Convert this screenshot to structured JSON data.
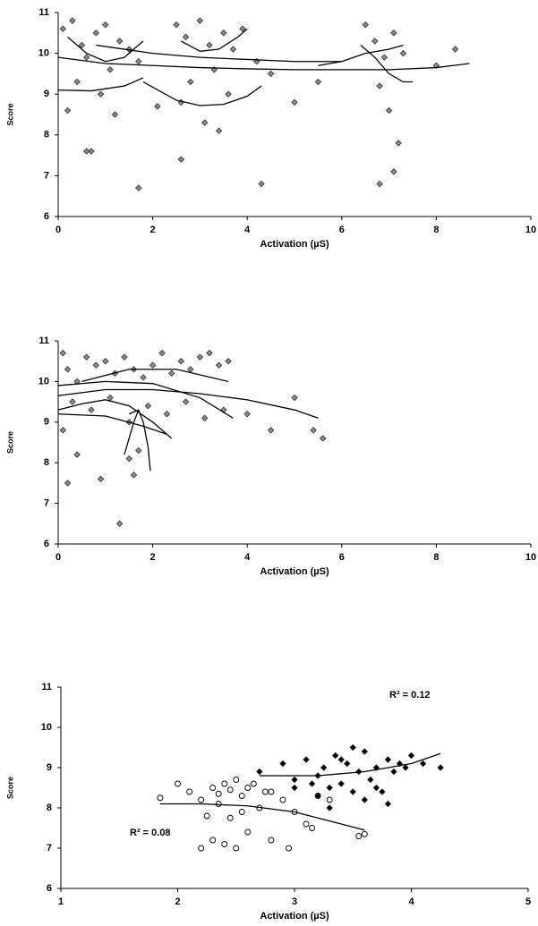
{
  "chart_data": [
    {
      "type": "scatter",
      "xlabel": "Activation (µS)",
      "ylabel": "Score",
      "xlim": [
        0,
        10
      ],
      "ylim": [
        6,
        11
      ],
      "xticks": [
        0,
        2,
        4,
        6,
        8,
        10
      ],
      "yticks": [
        6,
        7,
        8,
        9,
        10,
        11
      ],
      "series": [
        {
          "mode": "markers",
          "marker": "diamond",
          "color": "#8a8a8a",
          "x": [
            0.1,
            0.3,
            0.5,
            0.6,
            0.8,
            1.0,
            1.1,
            1.3,
            1.5,
            1.7,
            0.4,
            0.9,
            1.2,
            0.2,
            0.7,
            2.5,
            2.7,
            3.0,
            3.2,
            3.5,
            3.7,
            3.9,
            2.8,
            3.3,
            3.6,
            2.6,
            3.1,
            4.2,
            4.5,
            5.0,
            5.5,
            6.5,
            6.7,
            6.9,
            7.1,
            7.3,
            6.8,
            7.0,
            7.2,
            8.0,
            8.4,
            0.6,
            1.7,
            2.6,
            4.3,
            6.8,
            7.1,
            2.1,
            3.4
          ],
          "values": [
            10.6,
            10.8,
            10.2,
            9.9,
            10.5,
            10.7,
            9.6,
            10.3,
            10.1,
            9.8,
            9.3,
            9.0,
            8.5,
            8.6,
            7.6,
            10.7,
            10.4,
            10.8,
            10.2,
            10.5,
            10.1,
            10.6,
            9.3,
            9.6,
            9.0,
            8.8,
            8.3,
            9.8,
            9.5,
            8.8,
            9.3,
            10.7,
            10.3,
            9.9,
            10.5,
            10.0,
            9.2,
            8.6,
            7.8,
            9.7,
            10.1,
            7.6,
            6.7,
            7.4,
            6.8,
            6.8,
            7.1,
            8.7,
            8.1
          ]
        },
        {
          "mode": "line",
          "color": "#000000",
          "x": [
            0,
            1,
            2,
            3,
            4,
            5,
            6,
            7,
            8,
            8.7
          ],
          "values": [
            9.9,
            9.75,
            9.7,
            9.65,
            9.62,
            9.6,
            9.6,
            9.6,
            9.65,
            9.75
          ]
        },
        {
          "mode": "line",
          "color": "#000000",
          "x": [
            0.8,
            2,
            3,
            4,
            5,
            6
          ],
          "values": [
            10.2,
            10.0,
            9.9,
            9.85,
            9.8,
            9.8
          ]
        },
        {
          "mode": "line",
          "color": "#000000",
          "x": [
            0.2,
            0.6,
            1,
            1.4,
            1.8
          ],
          "values": [
            10.4,
            10.0,
            9.8,
            9.9,
            10.3
          ]
        },
        {
          "mode": "line",
          "color": "#000000",
          "x": [
            2.6,
            3,
            3.4,
            3.8,
            4.0
          ],
          "values": [
            10.3,
            10.05,
            10.1,
            10.4,
            10.6
          ]
        },
        {
          "mode": "line",
          "color": "#000000",
          "x": [
            0,
            0.7,
            1.4,
            1.8
          ],
          "values": [
            9.1,
            9.08,
            9.2,
            9.4
          ]
        },
        {
          "mode": "line",
          "color": "#000000",
          "x": [
            1.8,
            2.5,
            3,
            3.5,
            4,
            4.3
          ],
          "values": [
            9.3,
            8.85,
            8.72,
            8.75,
            8.95,
            9.2
          ]
        },
        {
          "mode": "line",
          "color": "#000000",
          "x": [
            5.5,
            6,
            6.5,
            7,
            7.3
          ],
          "values": [
            9.7,
            9.8,
            10.0,
            10.1,
            10.2
          ]
        },
        {
          "mode": "line",
          "color": "#000000",
          "x": [
            6.4,
            6.7,
            7,
            7.3,
            7.5
          ],
          "values": [
            10.2,
            9.9,
            9.5,
            9.3,
            9.3
          ]
        }
      ]
    },
    {
      "type": "scatter",
      "xlabel": "Activation (µS)",
      "ylabel": "Score",
      "xlim": [
        0,
        10
      ],
      "ylim": [
        6,
        11
      ],
      "xticks": [
        0,
        2,
        4,
        6,
        8,
        10
      ],
      "yticks": [
        6,
        7,
        8,
        9,
        10,
        11
      ],
      "series": [
        {
          "mode": "markers",
          "marker": "diamond",
          "color": "#8a8a8a",
          "x": [
            0.1,
            0.2,
            0.4,
            0.6,
            0.8,
            1.0,
            1.2,
            1.4,
            1.6,
            1.8,
            2.0,
            2.2,
            2.4,
            2.6,
            2.8,
            3.0,
            3.2,
            3.4,
            3.6,
            0.3,
            0.7,
            1.1,
            1.5,
            1.9,
            2.3,
            2.7,
            3.1,
            3.5,
            0.1,
            0.4,
            0.9,
            1.3,
            1.6,
            1.7,
            1.5,
            4.0,
            4.5,
            5.0,
            5.4,
            5.6,
            0.2
          ],
          "values": [
            10.7,
            10.3,
            10.0,
            10.6,
            10.4,
            10.5,
            10.2,
            10.6,
            10.3,
            10.1,
            10.4,
            10.7,
            10.2,
            10.5,
            10.3,
            10.6,
            10.7,
            10.4,
            10.5,
            9.5,
            9.3,
            9.6,
            9.0,
            9.4,
            9.2,
            9.5,
            9.1,
            9.3,
            8.8,
            8.2,
            7.6,
            6.5,
            7.7,
            8.3,
            8.1,
            9.2,
            8.8,
            9.6,
            8.8,
            8.6,
            7.5
          ]
        },
        {
          "mode": "line",
          "color": "#000000",
          "x": [
            0,
            1,
            2,
            3,
            4,
            5,
            5.5
          ],
          "values": [
            9.65,
            9.8,
            9.8,
            9.7,
            9.55,
            9.3,
            9.1
          ]
        },
        {
          "mode": "line",
          "color": "#000000",
          "x": [
            0,
            1,
            2,
            3,
            3.7
          ],
          "values": [
            9.9,
            10.0,
            9.95,
            9.6,
            9.1
          ]
        },
        {
          "mode": "line",
          "color": "#000000",
          "x": [
            0.5,
            1.5,
            2.5,
            3.6
          ],
          "values": [
            10.0,
            10.3,
            10.3,
            10.0
          ]
        },
        {
          "mode": "line",
          "color": "#000000",
          "x": [
            0,
            0.5,
            1,
            1.5,
            2,
            2.4
          ],
          "values": [
            9.3,
            9.45,
            9.55,
            9.4,
            9.0,
            8.6
          ]
        },
        {
          "mode": "line",
          "color": "#000000",
          "x": [
            0,
            1,
            1.8,
            2.3
          ],
          "values": [
            9.2,
            9.15,
            8.9,
            8.7
          ]
        },
        {
          "mode": "line",
          "color": "#000000",
          "x": [
            1.5,
            1.7,
            1.8,
            1.9,
            1.95
          ],
          "values": [
            9.2,
            9.3,
            9.0,
            8.4,
            7.8
          ]
        },
        {
          "mode": "line",
          "color": "#000000",
          "x": [
            1.4,
            1.6,
            1.7
          ],
          "values": [
            8.2,
            9.0,
            9.3
          ]
        }
      ]
    },
    {
      "type": "scatter",
      "xlabel": "Activation (µS)",
      "ylabel": "Score",
      "xlim": [
        1,
        5
      ],
      "ylim": [
        6,
        11
      ],
      "xticks": [
        1,
        2,
        3,
        4,
        5
      ],
      "yticks": [
        6,
        7,
        8,
        9,
        10,
        11
      ],
      "annotations": [
        "R² = 0.12",
        "R² = 0.08"
      ],
      "series": [
        {
          "mode": "markers",
          "marker": "circle",
          "color": "#000000",
          "x": [
            1.85,
            2.0,
            2.1,
            2.2,
            2.3,
            2.35,
            2.4,
            2.45,
            2.5,
            2.55,
            2.6,
            2.65,
            2.7,
            2.75,
            2.8,
            2.9,
            3.0,
            3.1,
            3.2,
            3.3,
            3.55,
            3.6,
            2.2,
            2.3,
            2.4,
            2.5,
            2.6,
            2.8,
            2.95,
            3.15,
            2.45,
            2.55,
            2.35,
            2.25
          ],
          "values": [
            8.25,
            8.6,
            8.4,
            8.2,
            8.5,
            8.35,
            8.6,
            8.45,
            8.7,
            8.3,
            8.5,
            8.6,
            8.0,
            8.4,
            8.4,
            8.2,
            7.9,
            7.6,
            8.3,
            8.2,
            7.3,
            7.35,
            7.0,
            7.2,
            7.1,
            7.0,
            7.4,
            7.2,
            7.0,
            7.5,
            7.75,
            7.9,
            8.1,
            7.8
          ]
        },
        {
          "mode": "markers",
          "marker": "diamond",
          "color": "#000000",
          "x": [
            2.7,
            2.9,
            3.0,
            3.1,
            3.2,
            3.25,
            3.3,
            3.35,
            3.4,
            3.45,
            3.5,
            3.55,
            3.6,
            3.65,
            3.7,
            3.75,
            3.8,
            3.85,
            3.9,
            3.95,
            4.0,
            4.1,
            4.25,
            3.0,
            3.2,
            3.3,
            3.5,
            3.7,
            3.15,
            3.4,
            3.6,
            3.8
          ],
          "values": [
            8.9,
            9.1,
            8.7,
            9.2,
            8.8,
            9.0,
            8.5,
            9.3,
            8.6,
            9.1,
            9.5,
            8.9,
            9.4,
            8.7,
            9.0,
            8.4,
            9.2,
            8.9,
            9.1,
            9.0,
            9.3,
            9.1,
            9.0,
            8.5,
            8.3,
            8.0,
            8.4,
            8.5,
            8.6,
            9.2,
            8.2,
            8.1
          ]
        },
        {
          "mode": "line",
          "color": "#000000",
          "x": [
            1.85,
            2.2,
            2.6,
            3.0,
            3.4,
            3.6
          ],
          "values": [
            8.1,
            8.1,
            8.05,
            7.9,
            7.6,
            7.45
          ]
        },
        {
          "mode": "line",
          "color": "#000000",
          "x": [
            2.7,
            3.2,
            3.6,
            4.0,
            4.25
          ],
          "values": [
            8.8,
            8.8,
            8.9,
            9.1,
            9.35
          ]
        }
      ]
    }
  ]
}
